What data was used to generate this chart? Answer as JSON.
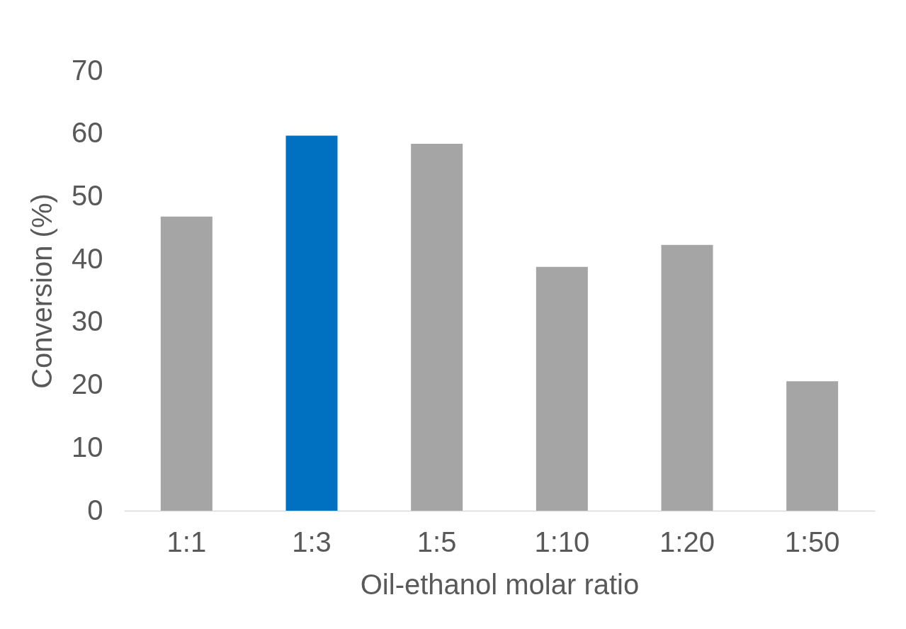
{
  "chart_data": {
    "type": "bar",
    "xlabel": "Oil-ethanol molar ratio",
    "ylabel": "Conversion (%)",
    "categories": [
      "1:1",
      "1:3",
      "1:5",
      "1:10",
      "1:20",
      "1:50"
    ],
    "values": [
      46.8,
      59.7,
      58.4,
      38.8,
      42.3,
      20.6
    ],
    "colors": [
      "#a5a5a5",
      "#0070c0",
      "#a5a5a5",
      "#a5a5a5",
      "#a5a5a5",
      "#a5a5a5"
    ],
    "ylim": [
      0,
      70
    ],
    "yticks": [
      0,
      10,
      20,
      30,
      40,
      50,
      60,
      70
    ],
    "grid": false
  }
}
